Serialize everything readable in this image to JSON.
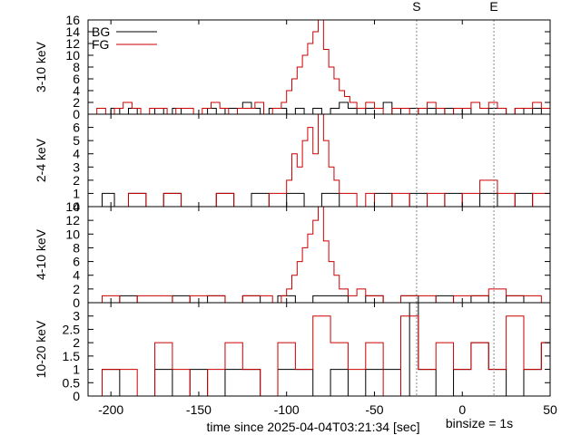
{
  "chart_data": {
    "type": "line",
    "layout": "stacked-panels",
    "xlabel": "time since 2025-04-04T03:21:34 [sec]",
    "binsize_label": "binsize = 1s",
    "xlim": [
      -213,
      50
    ],
    "xticks": [
      -200,
      -150,
      -100,
      -50,
      0,
      50
    ],
    "markers": [
      {
        "label": "S",
        "x": -26
      },
      {
        "label": "E",
        "x": 18
      }
    ],
    "legend": {
      "position": "top-left",
      "entries": [
        {
          "label": "BG",
          "color": "#000000"
        },
        {
          "label": "FG",
          "color": "#cc0000"
        }
      ]
    },
    "panels": [
      {
        "ylabel": "3-10 keV",
        "ylim": [
          0,
          16
        ],
        "yticks": [
          0,
          2,
          4,
          6,
          8,
          10,
          12,
          14,
          16
        ],
        "series": [
          {
            "name": "BG",
            "color": "#000000",
            "x": [
              -213,
              -205,
              -200,
              -195,
              -190,
              -185,
              -180,
              -175,
              -170,
              -165,
              -160,
              -155,
              -150,
              -145,
              -140,
              -135,
              -130,
              -125,
              -120,
              -115,
              -110,
              -105,
              -100,
              -95,
              -90,
              -85,
              -80,
              -75,
              -70,
              -65,
              -60,
              -55,
              -50,
              -45,
              -40,
              -35,
              -30,
              -25,
              -20,
              -15,
              -10,
              -5,
              0,
              5,
              10,
              15,
              20,
              25,
              30,
              35,
              40,
              45,
              50
            ],
            "y": [
              0,
              0,
              1,
              0,
              1,
              0,
              0,
              1,
              0,
              1,
              0,
              0,
              0,
              1,
              0,
              1,
              1,
              2,
              1,
              0,
              1,
              1,
              0,
              1,
              0,
              1,
              0,
              1,
              2,
              1,
              0,
              1,
              1,
              2,
              0,
              1,
              1,
              0,
              1,
              0,
              1,
              0,
              1,
              0,
              0,
              1,
              1,
              0,
              1,
              0,
              1,
              0,
              2
            ]
          },
          {
            "name": "FG",
            "color": "#cc0000",
            "x": [
              -213,
              -208,
              -203,
              -198,
              -193,
              -188,
              -183,
              -178,
              -173,
              -168,
              -163,
              -158,
              -153,
              -148,
              -143,
              -138,
              -133,
              -128,
              -123,
              -118,
              -113,
              -108,
              -103,
              -100,
              -97,
              -94,
              -91,
              -88,
              -85,
              -82,
              -79,
              -76,
              -73,
              -70,
              -67,
              -64,
              -60,
              -55,
              -50,
              -45,
              -40,
              -35,
              -30,
              -25,
              -20,
              -15,
              -10,
              -5,
              0,
              5,
              10,
              15,
              20,
              25,
              30,
              35,
              40,
              45,
              50
            ],
            "y": [
              0,
              1,
              0,
              1,
              2,
              1,
              0,
              1,
              1,
              0,
              1,
              1,
              0,
              1,
              2,
              1,
              0,
              1,
              1,
              2,
              0,
              1,
              2,
              4,
              6,
              8,
              10,
              12,
              14,
              16,
              11,
              8,
              6,
              4,
              3,
              2,
              1,
              2,
              1,
              0,
              1,
              1,
              0,
              1,
              2,
              1,
              0,
              1,
              1,
              2,
              1,
              2,
              1,
              0,
              1,
              1,
              2,
              1,
              2
            ]
          }
        ]
      },
      {
        "ylabel": "2-4 keV",
        "ylim": [
          0,
          7
        ],
        "yticks": [
          0,
          1,
          2,
          3,
          4,
          5,
          6
        ],
        "series": [
          {
            "name": "BG",
            "color": "#000000",
            "x": [
              -213,
              -205,
              -198,
              -190,
              -180,
              -170,
              -160,
              -150,
              -140,
              -130,
              -120,
              -110,
              -100,
              -90,
              -80,
              -70,
              -60,
              -50,
              -40,
              -30,
              -20,
              -10,
              0,
              10,
              20,
              30,
              40,
              50
            ],
            "y": [
              0,
              1,
              0,
              1,
              0,
              1,
              0,
              0,
              1,
              0,
              1,
              0,
              1,
              0,
              1,
              0,
              0,
              1,
              0,
              1,
              0,
              1,
              0,
              1,
              0,
              1,
              0,
              1
            ]
          },
          {
            "name": "FG",
            "color": "#cc0000",
            "x": [
              -213,
              -200,
              -190,
              -180,
              -170,
              -160,
              -150,
              -140,
              -130,
              -120,
              -110,
              -105,
              -100,
              -97,
              -94,
              -91,
              -88,
              -85,
              -82,
              -79,
              -76,
              -73,
              -70,
              -65,
              -60,
              -55,
              -50,
              -40,
              -30,
              -20,
              -10,
              0,
              10,
              20,
              30,
              40,
              50
            ],
            "y": [
              0,
              0,
              1,
              0,
              1,
              0,
              0,
              1,
              0,
              0,
              1,
              1,
              2,
              4,
              3,
              5,
              6,
              4,
              7,
              5,
              3,
              2,
              1,
              1,
              0,
              1,
              0,
              1,
              0,
              1,
              0,
              1,
              2,
              1,
              0,
              1,
              0
            ]
          }
        ]
      },
      {
        "ylabel": "4-10 keV",
        "ylim": [
          0,
          14
        ],
        "yticks": [
          0,
          2,
          4,
          6,
          8,
          10,
          12,
          14
        ],
        "series": [
          {
            "name": "BG",
            "color": "#000000",
            "x": [
              -213,
              -205,
              -195,
              -185,
              -175,
              -165,
              -155,
              -145,
              -135,
              -125,
              -115,
              -105,
              -95,
              -85,
              -75,
              -65,
              -55,
              -45,
              -35,
              -25,
              -15,
              -5,
              5,
              15,
              25,
              35,
              45,
              50
            ],
            "y": [
              0,
              0,
              1,
              0,
              0,
              1,
              0,
              1,
              0,
              1,
              0,
              1,
              0,
              1,
              1,
              0,
              1,
              0,
              1,
              0,
              1,
              0,
              1,
              0,
              1,
              0,
              0,
              1
            ]
          },
          {
            "name": "FG",
            "color": "#cc0000",
            "x": [
              -213,
              -205,
              -195,
              -185,
              -175,
              -165,
              -155,
              -145,
              -135,
              -125,
              -115,
              -108,
              -103,
              -100,
              -97,
              -94,
              -91,
              -88,
              -85,
              -82,
              -79,
              -76,
              -73,
              -70,
              -65,
              -60,
              -55,
              -45,
              -35,
              -25,
              -15,
              -5,
              5,
              15,
              25,
              35,
              45,
              50
            ],
            "y": [
              0,
              1,
              0,
              1,
              1,
              0,
              1,
              1,
              0,
              1,
              1,
              0,
              1,
              2,
              4,
              6,
              8,
              10,
              12,
              14,
              9,
              6,
              4,
              2,
              1,
              2,
              1,
              0,
              1,
              1,
              0,
              1,
              1,
              2,
              1,
              1,
              0,
              1
            ]
          }
        ]
      },
      {
        "ylabel": "10-20 keV",
        "ylim": [
          0,
          3.5
        ],
        "yticks": [
          0,
          0.5,
          1,
          1.5,
          2,
          2.5,
          3
        ],
        "series": [
          {
            "name": "BG",
            "color": "#000000",
            "x": [
              -213,
              -205,
              -195,
              -185,
              -175,
              -165,
              -155,
              -145,
              -135,
              -125,
              -115,
              -105,
              -95,
              -85,
              -75,
              -65,
              -55,
              -45,
              -35,
              -30,
              -25,
              -15,
              -5,
              5,
              15,
              25,
              35,
              45,
              50
            ],
            "y": [
              0,
              1,
              0,
              0,
              1,
              0,
              1,
              0,
              1,
              1,
              0,
              1,
              1,
              0,
              1,
              0,
              1,
              1,
              0,
              3.5,
              1,
              0,
              1,
              2,
              1,
              0,
              1,
              2,
              1
            ]
          },
          {
            "name": "FG",
            "color": "#cc0000",
            "x": [
              -213,
              -205,
              -195,
              -185,
              -175,
              -165,
              -155,
              -145,
              -135,
              -125,
              -115,
              -105,
              -95,
              -85,
              -75,
              -65,
              -55,
              -45,
              -35,
              -25,
              -15,
              -5,
              5,
              15,
              25,
              35,
              45,
              50
            ],
            "y": [
              0,
              1,
              1,
              0,
              2,
              1,
              0,
              1,
              2,
              1,
              0,
              2,
              1,
              3,
              2,
              1,
              2,
              0,
              3,
              1,
              2,
              1,
              2,
              1,
              3,
              1,
              2,
              3
            ]
          }
        ]
      }
    ]
  }
}
